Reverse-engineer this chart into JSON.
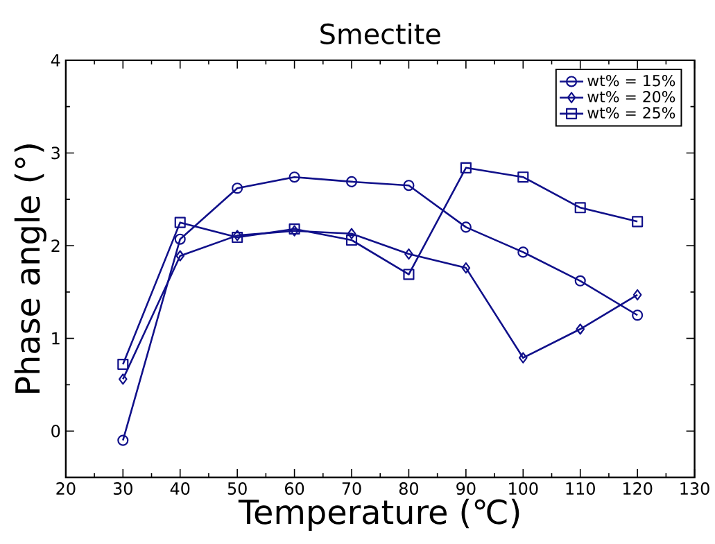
{
  "chart_data": {
    "type": "line",
    "title": "Smectite",
    "xlabel": "Temperature (℃)",
    "ylabel": "Phase angle (°)",
    "x": [
      30,
      40,
      50,
      60,
      70,
      80,
      90,
      100,
      110,
      120
    ],
    "series": [
      {
        "name": "wt% = 15%",
        "color": "#10108a",
        "marker": "circle",
        "values": [
          -0.1,
          2.07,
          2.62,
          2.74,
          2.69,
          2.65,
          2.2,
          1.93,
          1.62,
          1.25
        ]
      },
      {
        "name": "wt% = 20%",
        "color": "#10108a",
        "marker": "diamond",
        "values": [
          0.56,
          1.89,
          2.11,
          2.16,
          2.13,
          1.91,
          1.76,
          0.79,
          1.1,
          1.47
        ]
      },
      {
        "name": "wt% = 25%",
        "color": "#10108a",
        "marker": "square",
        "values": [
          0.72,
          2.25,
          2.09,
          2.18,
          2.06,
          1.69,
          2.84,
          2.74,
          2.41,
          2.26
        ]
      }
    ],
    "xlim": [
      20,
      130
    ],
    "ylim": [
      -0.5,
      4
    ],
    "xticks": [
      20,
      30,
      40,
      50,
      60,
      70,
      80,
      90,
      100,
      110,
      120,
      130
    ],
    "yticks": [
      0,
      1,
      2,
      3,
      4
    ],
    "grid": false,
    "legend": "top right",
    "line_style": "solid"
  }
}
